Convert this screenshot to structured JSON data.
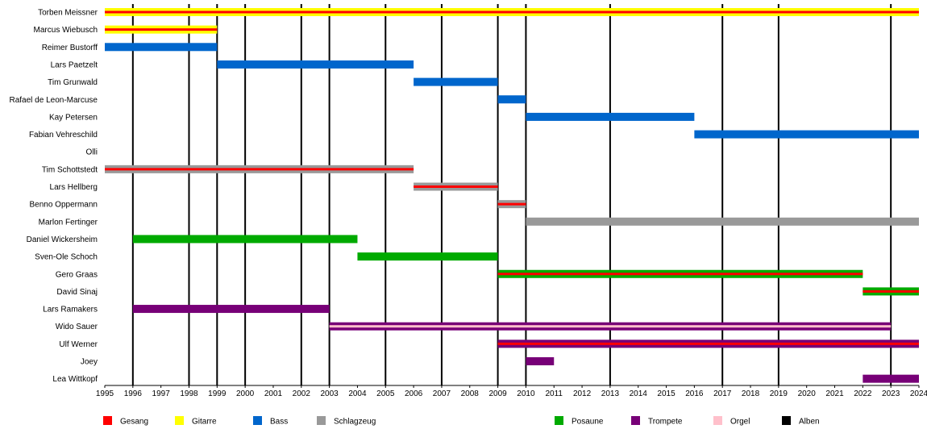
{
  "chart_data": {
    "type": "timeline",
    "x_range": [
      1995,
      2024
    ],
    "years": [
      1995,
      1996,
      1997,
      1998,
      1999,
      2000,
      2001,
      2002,
      2003,
      2004,
      2005,
      2006,
      2007,
      2008,
      2009,
      2010,
      2011,
      2012,
      2013,
      2014,
      2015,
      2016,
      2017,
      2018,
      2019,
      2020,
      2021,
      2022,
      2023,
      2024
    ],
    "colors": {
      "Gesang": "#ff0000",
      "Gitarre": "#ffff00",
      "Bass": "#0066cc",
      "Schlagzeug": "#999999",
      "Posaune": "#00aa00",
      "Trompete": "#770077",
      "Orgel": "#ffc0cb",
      "Alben": "#000000"
    },
    "legend": [
      {
        "label": "Gesang",
        "role": "Gesang"
      },
      {
        "label": "Gitarre",
        "role": "Gitarre"
      },
      {
        "label": "Bass",
        "role": "Bass"
      },
      {
        "label": "Schlagzeug",
        "role": "Schlagzeug"
      },
      {
        "label": "Posaune",
        "role": "Posaune"
      },
      {
        "label": "Trompete",
        "role": "Trompete"
      },
      {
        "label": "Orgel",
        "role": "Orgel"
      },
      {
        "label": "Alben",
        "role": "Alben"
      }
    ],
    "albums": [
      1996,
      1998,
      1999,
      2000,
      2002,
      2003,
      2005,
      2007,
      2009,
      2010,
      2013,
      2017,
      2019,
      2023
    ],
    "members": [
      {
        "name": "Torben Meissner",
        "bars": [
          {
            "start": 1995,
            "end": 2024,
            "role": "Gitarre",
            "secondary": "Gesang"
          }
        ]
      },
      {
        "name": "Marcus Wiebusch",
        "bars": [
          {
            "start": 1995,
            "end": 1999,
            "role": "Gitarre",
            "secondary": "Gesang"
          }
        ]
      },
      {
        "name": "Reimer Bustorff",
        "bars": [
          {
            "start": 1995,
            "end": 1999,
            "role": "Bass"
          }
        ]
      },
      {
        "name": "Lars Paetzelt",
        "bars": [
          {
            "start": 1999,
            "end": 2006,
            "role": "Bass"
          }
        ]
      },
      {
        "name": "Tim Grunwald",
        "bars": [
          {
            "start": 2006,
            "end": 2009,
            "role": "Bass"
          }
        ]
      },
      {
        "name": "Rafael de Leon-Marcuse",
        "bars": [
          {
            "start": 2009,
            "end": 2010,
            "role": "Bass"
          }
        ]
      },
      {
        "name": "Kay Petersen",
        "bars": [
          {
            "start": 2010,
            "end": 2016,
            "role": "Bass"
          }
        ]
      },
      {
        "name": "Fabian Vehreschild",
        "bars": [
          {
            "start": 2016,
            "end": 2024,
            "role": "Bass"
          }
        ]
      },
      {
        "name": "Olli",
        "bars": []
      },
      {
        "name": "Tim Schottstedt",
        "bars": [
          {
            "start": 1995,
            "end": 2006,
            "role": "Schlagzeug",
            "secondary": "Gesang"
          }
        ]
      },
      {
        "name": "Lars Hellberg",
        "bars": [
          {
            "start": 2006,
            "end": 2009,
            "role": "Schlagzeug",
            "secondary": "Gesang"
          }
        ]
      },
      {
        "name": "Benno Oppermann",
        "bars": [
          {
            "start": 2009,
            "end": 2010,
            "role": "Schlagzeug",
            "secondary": "Gesang"
          }
        ]
      },
      {
        "name": "Marlon Fertinger",
        "bars": [
          {
            "start": 2010,
            "end": 2024,
            "role": "Schlagzeug"
          }
        ]
      },
      {
        "name": "Daniel Wickersheim",
        "bars": [
          {
            "start": 1996,
            "end": 2004,
            "role": "Posaune"
          }
        ]
      },
      {
        "name": "Sven-Ole Schoch",
        "bars": [
          {
            "start": 2004,
            "end": 2009,
            "role": "Posaune"
          }
        ]
      },
      {
        "name": "Gero Graas",
        "bars": [
          {
            "start": 2009,
            "end": 2022,
            "role": "Posaune",
            "secondary": "Gesang"
          }
        ]
      },
      {
        "name": "David Sinaj",
        "bars": [
          {
            "start": 2022,
            "end": 2024,
            "role": "Posaune",
            "secondary": "Gesang"
          }
        ]
      },
      {
        "name": "Lars Ramakers",
        "bars": [
          {
            "start": 1996,
            "end": 2003,
            "role": "Trompete"
          }
        ]
      },
      {
        "name": "Wido Sauer",
        "bars": [
          {
            "start": 2003,
            "end": 2023,
            "role": "Trompete",
            "secondary": "Orgel"
          }
        ]
      },
      {
        "name": "Ulf Werner",
        "bars": [
          {
            "start": 2009,
            "end": 2024,
            "role": "Trompete",
            "secondary": "Gesang"
          }
        ]
      },
      {
        "name": "Joey",
        "bars": [
          {
            "start": 2010,
            "end": 2011,
            "role": "Trompete"
          }
        ]
      },
      {
        "name": "Lea Wittkopf",
        "bars": [
          {
            "start": 2022,
            "end": 2024,
            "role": "Trompete"
          }
        ]
      }
    ]
  }
}
